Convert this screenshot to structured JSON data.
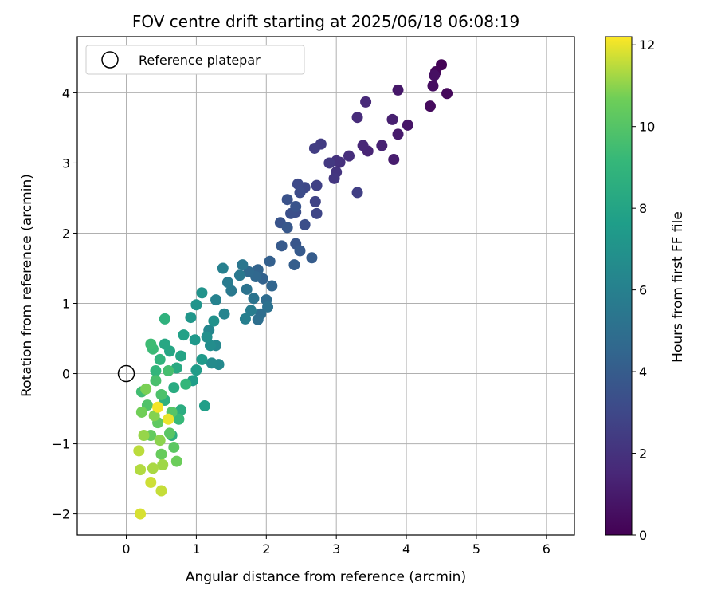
{
  "chart_data": {
    "type": "scatter",
    "title": "FOV centre drift starting at 2025/06/18 06:08:19",
    "xlabel": "Angular distance from reference (arcmin)",
    "ylabel": "Rotation from reference (arcmin)",
    "xlim": [
      -0.7,
      6.4
    ],
    "ylim": [
      -2.3,
      4.8
    ],
    "xticks": [
      0,
      1,
      2,
      3,
      4,
      5,
      6
    ],
    "yticks": [
      -2,
      -1,
      0,
      1,
      2,
      3,
      4
    ],
    "grid": true,
    "colormap": "viridis",
    "colorbar": {
      "label": "Hours from first FF file",
      "min": 0,
      "max": 12.2,
      "ticks": [
        0,
        2,
        4,
        6,
        8,
        10,
        12
      ]
    },
    "legend": {
      "placement": "top-left",
      "entries": [
        "Reference platepar"
      ]
    },
    "reference_point": {
      "x": 0,
      "y": 0
    },
    "points": [
      [
        4.5,
        4.4,
        0.1
      ],
      [
        4.42,
        4.3,
        0.2
      ],
      [
        4.58,
        3.99,
        0.3
      ],
      [
        4.34,
        3.81,
        0.4
      ],
      [
        4.38,
        4.1,
        0.5
      ],
      [
        4.4,
        4.25,
        0.6
      ],
      [
        4.02,
        3.54,
        0.8
      ],
      [
        3.88,
        4.04,
        0.9
      ],
      [
        3.88,
        3.41,
        1.0
      ],
      [
        3.82,
        3.05,
        1.1
      ],
      [
        3.8,
        3.62,
        1.2
      ],
      [
        3.65,
        3.25,
        1.3
      ],
      [
        3.45,
        3.17,
        1.4
      ],
      [
        3.38,
        3.25,
        1.5
      ],
      [
        3.42,
        3.87,
        1.6
      ],
      [
        3.3,
        3.65,
        1.7
      ],
      [
        3.18,
        3.1,
        1.8
      ],
      [
        3.05,
        3.01,
        1.9
      ],
      [
        3.0,
        3.03,
        2.0
      ],
      [
        3.0,
        2.87,
        2.1
      ],
      [
        2.97,
        2.78,
        2.2
      ],
      [
        2.9,
        3.0,
        2.3
      ],
      [
        2.78,
        3.27,
        2.4
      ],
      [
        2.69,
        3.21,
        2.5
      ],
      [
        3.3,
        2.58,
        2.6
      ],
      [
        2.72,
        2.68,
        2.7
      ],
      [
        2.7,
        2.45,
        2.8
      ],
      [
        2.72,
        2.28,
        2.9
      ],
      [
        2.55,
        2.65,
        3.0
      ],
      [
        2.45,
        2.7,
        3.1
      ],
      [
        2.48,
        2.58,
        3.2
      ],
      [
        2.42,
        2.3,
        3.3
      ],
      [
        2.55,
        2.12,
        3.3
      ],
      [
        2.35,
        2.28,
        3.4
      ],
      [
        2.3,
        2.48,
        3.5
      ],
      [
        2.2,
        2.15,
        3.6
      ],
      [
        2.42,
        2.38,
        3.6
      ],
      [
        2.42,
        1.85,
        3.7
      ],
      [
        2.3,
        2.08,
        3.8
      ],
      [
        2.22,
        1.82,
        3.9
      ],
      [
        2.48,
        1.75,
        3.9
      ],
      [
        2.65,
        1.65,
        4.0
      ],
      [
        2.4,
        1.55,
        4.1
      ],
      [
        2.05,
        1.6,
        4.2
      ],
      [
        1.95,
        1.35,
        4.3
      ],
      [
        1.88,
        1.48,
        4.4
      ],
      [
        2.08,
        1.25,
        4.5
      ],
      [
        1.85,
        1.38,
        4.6
      ],
      [
        1.75,
        1.45,
        4.7
      ],
      [
        2.0,
        1.05,
        4.8
      ],
      [
        1.92,
        0.85,
        4.9
      ],
      [
        1.88,
        0.77,
        5.0
      ],
      [
        2.02,
        0.95,
        5.1
      ],
      [
        1.72,
        1.2,
        5.2
      ],
      [
        1.82,
        1.07,
        5.3
      ],
      [
        1.66,
        1.55,
        5.4
      ],
      [
        1.62,
        1.4,
        5.5
      ],
      [
        1.5,
        1.18,
        5.6
      ],
      [
        1.45,
        1.3,
        5.7
      ],
      [
        1.78,
        0.9,
        5.8
      ],
      [
        1.7,
        0.78,
        5.9
      ],
      [
        1.38,
        1.5,
        6.0
      ],
      [
        1.28,
        1.05,
        6.1
      ],
      [
        1.4,
        0.85,
        6.2
      ],
      [
        1.18,
        0.62,
        6.3
      ],
      [
        1.28,
        0.4,
        6.4
      ],
      [
        1.32,
        0.13,
        6.5
      ],
      [
        1.22,
        0.15,
        6.6
      ],
      [
        1.2,
        0.4,
        6.7
      ],
      [
        1.15,
        0.52,
        6.8
      ],
      [
        1.25,
        0.75,
        6.9
      ],
      [
        1.08,
        1.15,
        7.0
      ],
      [
        1.0,
        0.98,
        7.1
      ],
      [
        0.92,
        0.8,
        7.2
      ],
      [
        0.98,
        0.48,
        7.3
      ],
      [
        1.08,
        0.2,
        7.4
      ],
      [
        1.0,
        0.05,
        7.5
      ],
      [
        0.95,
        -0.1,
        7.6
      ],
      [
        1.12,
        -0.46,
        7.7
      ],
      [
        0.82,
        0.55,
        7.8
      ],
      [
        0.78,
        0.25,
        8.0
      ],
      [
        0.62,
        0.32,
        8.1
      ],
      [
        0.55,
        0.42,
        8.2
      ],
      [
        0.72,
        0.08,
        8.3
      ],
      [
        0.68,
        -0.2,
        8.4
      ],
      [
        0.78,
        -0.52,
        8.5
      ],
      [
        0.65,
        -0.88,
        8.6
      ],
      [
        0.55,
        -0.38,
        8.7
      ],
      [
        0.55,
        0.78,
        8.8
      ],
      [
        0.48,
        0.2,
        8.9
      ],
      [
        0.42,
        0.04,
        9.0
      ],
      [
        0.85,
        -0.15,
        9.1
      ],
      [
        0.75,
        -0.65,
        9.2
      ],
      [
        0.38,
        0.35,
        9.3
      ],
      [
        0.35,
        0.42,
        9.4
      ],
      [
        0.22,
        -0.26,
        9.5
      ],
      [
        0.6,
        0.04,
        9.6
      ],
      [
        0.42,
        -0.1,
        9.7
      ],
      [
        0.5,
        -0.3,
        9.8
      ],
      [
        0.3,
        -0.45,
        9.9
      ],
      [
        0.65,
        -0.55,
        10.0
      ],
      [
        0.62,
        -0.85,
        10.1
      ],
      [
        0.68,
        -1.05,
        10.2
      ],
      [
        0.45,
        -0.7,
        10.3
      ],
      [
        0.35,
        -0.88,
        10.4
      ],
      [
        0.5,
        -1.15,
        10.5
      ],
      [
        0.72,
        -1.25,
        10.6
      ],
      [
        0.22,
        -0.55,
        10.7
      ],
      [
        0.28,
        -0.22,
        10.8
      ],
      [
        0.4,
        -0.6,
        10.9
      ],
      [
        0.48,
        -0.95,
        11.0
      ],
      [
        0.25,
        -0.88,
        11.1
      ],
      [
        0.52,
        -1.3,
        11.2
      ],
      [
        0.38,
        -1.35,
        11.3
      ],
      [
        0.2,
        -1.37,
        11.4
      ],
      [
        0.18,
        -1.1,
        11.5
      ],
      [
        0.5,
        -1.67,
        11.6
      ],
      [
        0.35,
        -1.55,
        11.7
      ],
      [
        0.2,
        -2.0,
        11.8
      ],
      [
        0.6,
        -0.65,
        12.0
      ],
      [
        0.45,
        -0.48,
        12.1
      ]
    ]
  }
}
